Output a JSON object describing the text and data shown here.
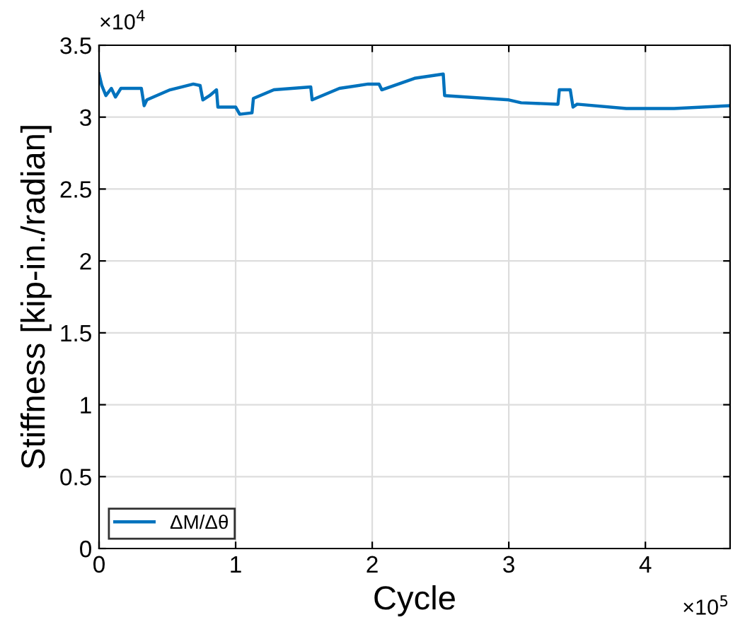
{
  "chart_data": {
    "type": "line",
    "xlabel": "Cycle",
    "ylabel": "Stiffness [kip-in./radian]",
    "annotations": [
      "×10$^{4}$",
      "×10$^{5}$"
    ],
    "series": [
      {
        "name": "ΔM/Δθ",
        "color": "#0072bd",
        "x": [
          0,
          0.02,
          0.05,
          0.09,
          0.12,
          0.16,
          0.31,
          0.33,
          0.35,
          0.52,
          0.69,
          0.74,
          0.76,
          0.81,
          0.86,
          0.87,
          1.0,
          1.03,
          1.12,
          1.13,
          1.28,
          1.55,
          1.56,
          1.76,
          1.97,
          2.05,
          2.07,
          2.31,
          2.52,
          2.53,
          3.0,
          3.09,
          3.36,
          3.37,
          3.45,
          3.47,
          3.5,
          3.86,
          4.21,
          4.62
        ],
        "values": [
          3.3,
          3.22,
          3.15,
          3.2,
          3.14,
          3.2,
          3.2,
          3.08,
          3.12,
          3.19,
          3.23,
          3.22,
          3.12,
          3.15,
          3.19,
          3.07,
          3.07,
          3.02,
          3.03,
          3.13,
          3.19,
          3.21,
          3.12,
          3.2,
          3.23,
          3.23,
          3.19,
          3.27,
          3.3,
          3.15,
          3.12,
          3.1,
          3.09,
          3.19,
          3.19,
          3.07,
          3.09,
          3.06,
          3.06,
          3.08
        ]
      }
    ],
    "xlim": [
      0,
      4.62
    ],
    "xticks": [
      0,
      1,
      2,
      3,
      4
    ],
    "ylim": [
      0,
      3.5
    ],
    "yticks": [
      0,
      0.5,
      1,
      1.5,
      2,
      2.5,
      3,
      3.5
    ],
    "grid": true,
    "legend": "bottom left",
    "line_style": "solid",
    "marker": "none"
  }
}
